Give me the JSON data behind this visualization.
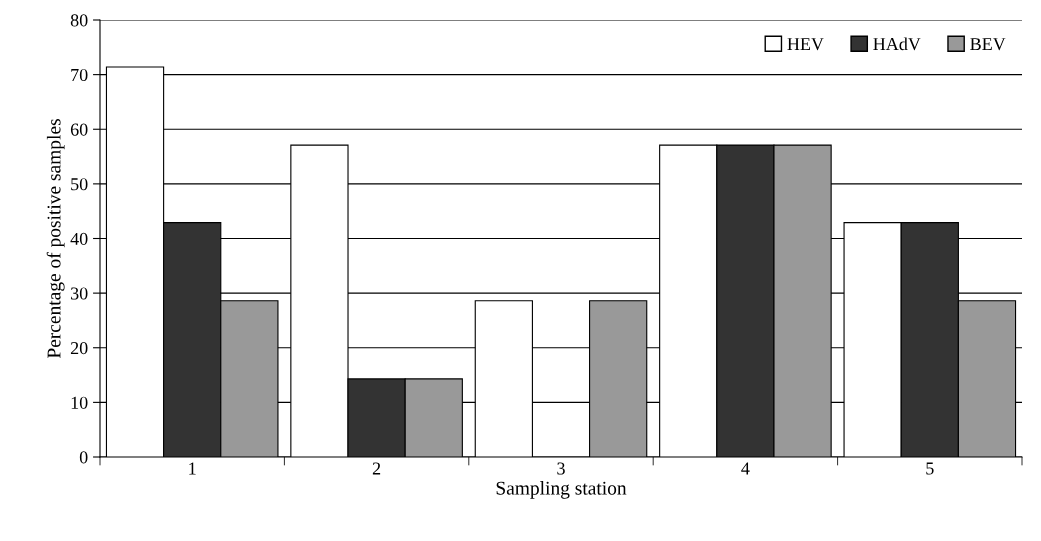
{
  "chart_data": {
    "type": "bar",
    "xlabel": "Sampling station",
    "ylabel": "Percentage of positive samples",
    "categories": [
      "1",
      "2",
      "3",
      "4",
      "5"
    ],
    "series": [
      {
        "name": "HEV",
        "color": "#ffffff",
        "values": [
          71.4,
          57.1,
          28.6,
          57.1,
          42.9
        ]
      },
      {
        "name": "HAdV",
        "color": "#333333",
        "values": [
          42.9,
          14.3,
          0,
          57.1,
          42.9
        ]
      },
      {
        "name": "BEV",
        "color": "#999999",
        "values": [
          28.6,
          14.3,
          28.6,
          57.1,
          28.6
        ]
      }
    ],
    "ylim": [
      0,
      80
    ],
    "yticks": [
      0,
      10,
      20,
      30,
      40,
      50,
      60,
      70,
      80
    ],
    "grid": "y",
    "legend": "top right"
  }
}
